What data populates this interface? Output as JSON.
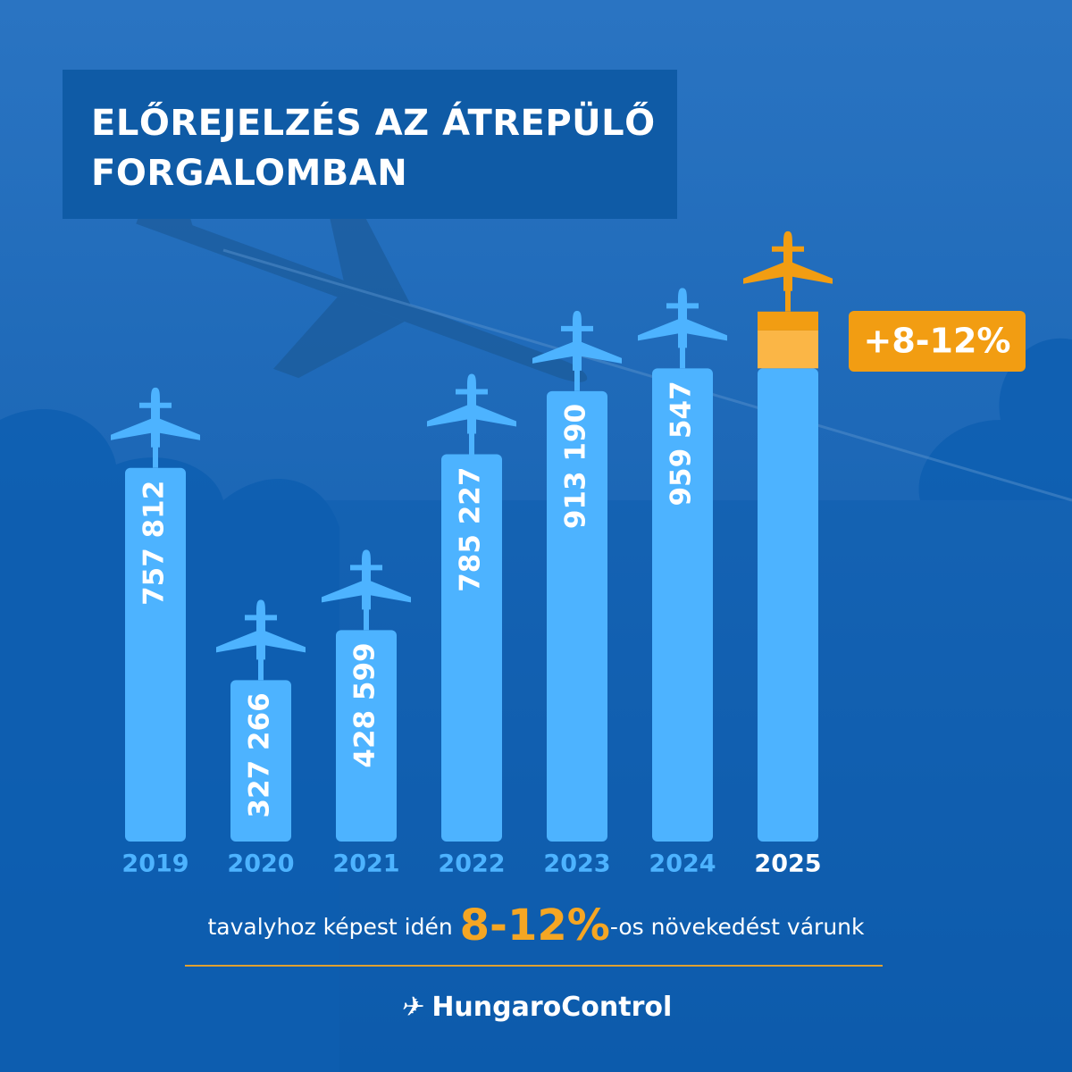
{
  "chart_data": {
    "type": "bar",
    "title": "ELŐREJELZÉS AZ ÁTREPÜLŐ FORGALOMBAN",
    "categories": [
      "2019",
      "2020",
      "2021",
      "2022",
      "2023",
      "2024",
      "2025"
    ],
    "values": [
      757812,
      327266,
      428599,
      785227,
      913190,
      959547,
      959547
    ],
    "value_labels": [
      "757 812",
      "327 266",
      "428 599",
      "785 227",
      "913 190",
      "959 547",
      null
    ],
    "color": "#4db3ff",
    "ylim": [
      0,
      1000000
    ],
    "forecast": {
      "growth_pct": [
        8,
        12
      ],
      "colors": [
        "#fbb646",
        "#f29d12"
      ],
      "label": "+8-12%"
    },
    "footer": {
      "before": "tavalyhoz képest idén",
      "highlight": "8-12%",
      "after": "-os növekedést várunk"
    },
    "brand": "HungaroControl"
  }
}
